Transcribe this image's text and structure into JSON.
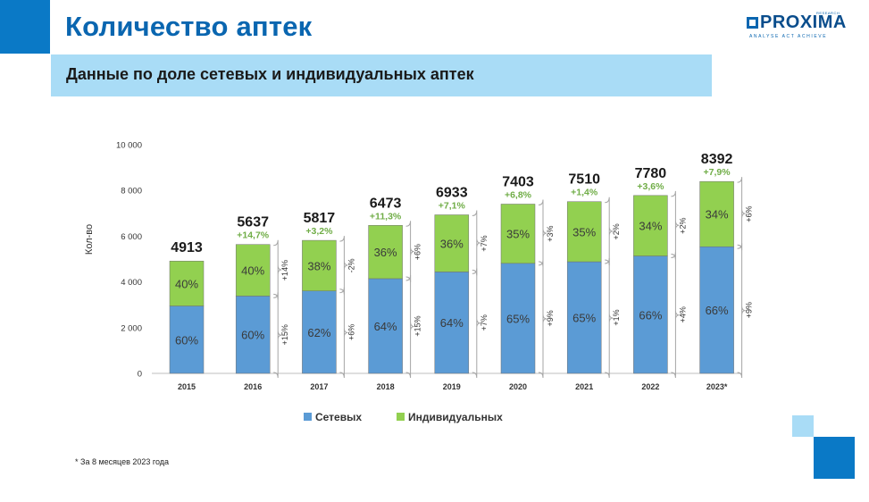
{
  "header": {
    "title": "Количество аптек",
    "subtitle": "Данные по доле сетевых и индивидуальных аптек"
  },
  "logo": {
    "name": "PROXIMA",
    "tagline": "ANALYSE  ACT  ACHIEVE",
    "research": "RESEARCH"
  },
  "footnote": "* За 8 месяцев 2023 года",
  "colors": {
    "network": "#5b9bd5",
    "individual": "#92d050",
    "growth_text": "#70ad47",
    "brand_dark": "#0a79c6",
    "brand_light": "#a9dcf6"
  },
  "chart_data": {
    "type": "bar",
    "stacked": true,
    "ylabel": "Кол-во",
    "ylim": [
      0,
      10000
    ],
    "yticks": [
      "0",
      "2 000",
      "4 000",
      "6 000",
      "8 000",
      "10 000"
    ],
    "categories": [
      "2015",
      "2016",
      "2017",
      "2018",
      "2019",
      "2020",
      "2021",
      "2022",
      "2023*"
    ],
    "totals": [
      4913,
      5637,
      5817,
      6473,
      6933,
      7403,
      7510,
      7780,
      8392
    ],
    "total_labels": [
      "4913",
      "5637",
      "5817",
      "6473",
      "6933",
      "7403",
      "7510",
      "7780",
      "8392"
    ],
    "total_growth": [
      "",
      "+14,7%",
      "+3,2%",
      "+11,3%",
      "+7,1%",
      "+6,8%",
      "+1,4%",
      "+3,6%",
      "+7,9%"
    ],
    "series": [
      {
        "name": "Сетевых",
        "share_pct": [
          60,
          60,
          62,
          64,
          64,
          65,
          65,
          66,
          66
        ],
        "labels": [
          "60%",
          "60%",
          "62%",
          "64%",
          "64%",
          "65%",
          "65%",
          "66%",
          "66%"
        ],
        "growth": [
          "+15%",
          "+6%",
          "+15%",
          "+7%",
          "+9%",
          "+1%",
          "+4%",
          "+9%"
        ]
      },
      {
        "name": "Индивидуальных",
        "share_pct": [
          40,
          40,
          38,
          36,
          36,
          35,
          35,
          34,
          34
        ],
        "labels": [
          "40%",
          "40%",
          "38%",
          "36%",
          "36%",
          "35%",
          "35%",
          "34%",
          "34%"
        ],
        "growth": [
          "+14%",
          "-2%",
          "+6%",
          "+7%",
          "+3%",
          "+2%",
          "+2%",
          "+6%"
        ]
      }
    ],
    "legend_position": "bottom",
    "grid": false
  }
}
